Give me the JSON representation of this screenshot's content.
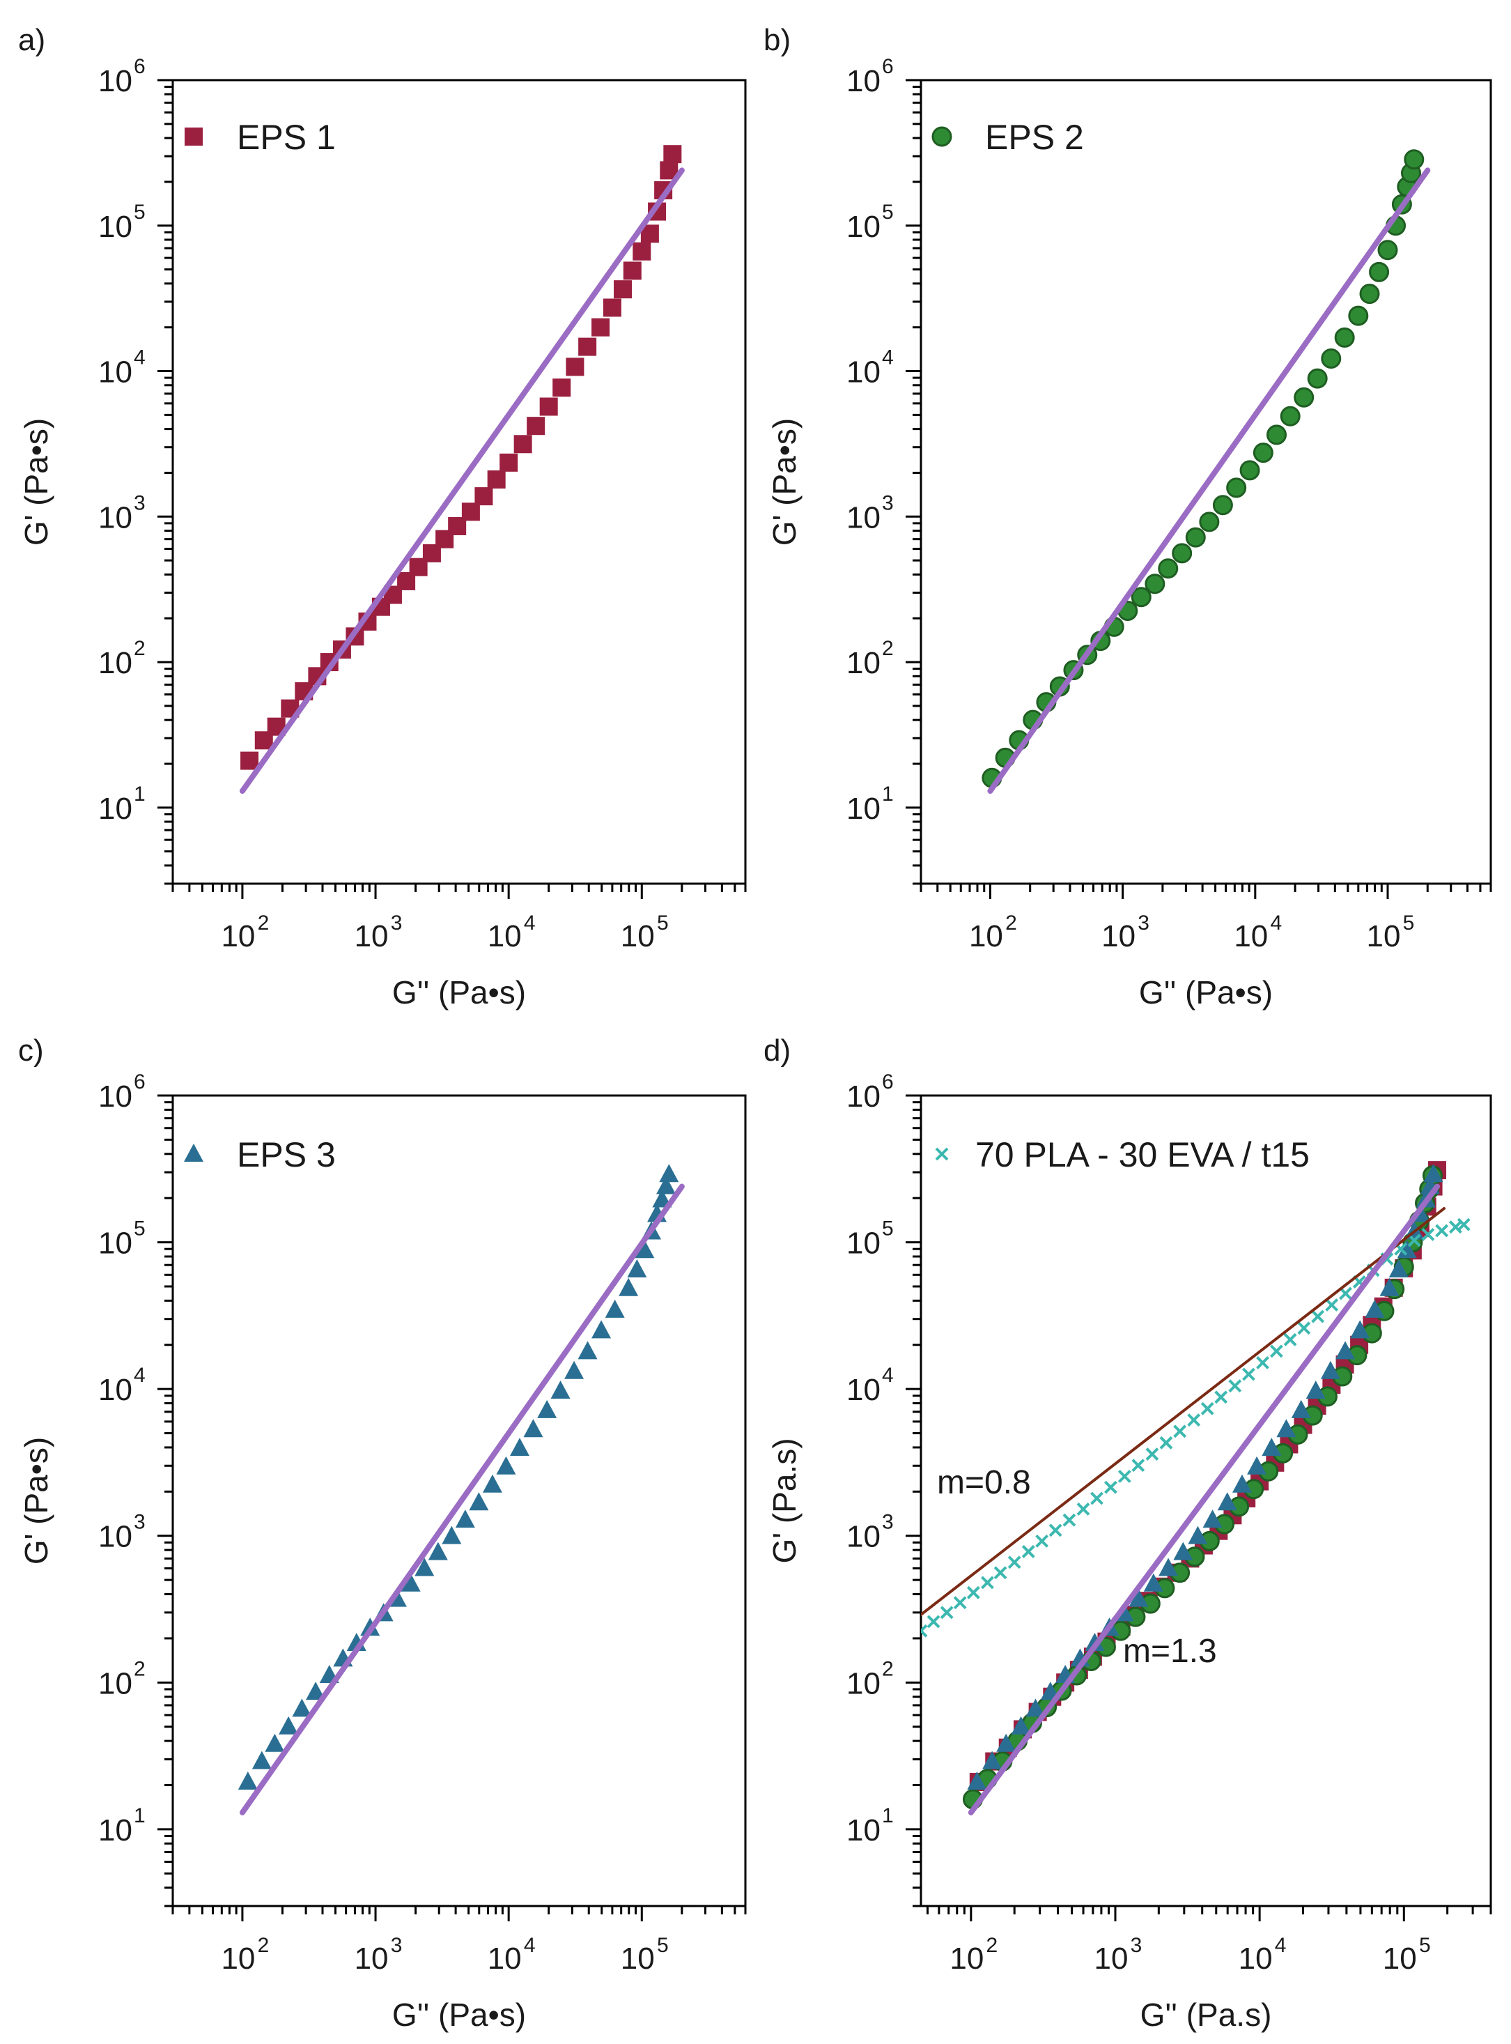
{
  "figure": {
    "panels": [
      "a)",
      "b)",
      "c)",
      "d)"
    ]
  },
  "chart_data": [
    {
      "panel": "a)",
      "type": "scatter",
      "xlabel": "G'' (Pa•s)",
      "ylabel": "G' (Pa•s)",
      "xscale": "log",
      "yscale": "log",
      "xlim": [
        30,
        600000
      ],
      "ylim": [
        3,
        1000000
      ],
      "xticks": [
        {
          "base": "10",
          "exp": "2"
        },
        {
          "base": "10",
          "exp": "3"
        },
        {
          "base": "10",
          "exp": "4"
        },
        {
          "base": "10",
          "exp": "5"
        }
      ],
      "yticks": [
        {
          "base": "10",
          "exp": "1"
        },
        {
          "base": "10",
          "exp": "2"
        },
        {
          "base": "10",
          "exp": "3"
        },
        {
          "base": "10",
          "exp": "4"
        },
        {
          "base": "10",
          "exp": "5"
        },
        {
          "base": "10",
          "exp": "6"
        }
      ],
      "legend": {
        "position": "top-left"
      },
      "annotations": [],
      "series": [
        {
          "name": "EPS 1",
          "marker": "square",
          "color": "#9b2040",
          "in_legend": true,
          "x": [
            113,
            145,
            180,
            228,
            290,
            365,
            450,
            560,
            700,
            870,
            1100,
            1350,
            1700,
            2100,
            2650,
            3300,
            4100,
            5200,
            6500,
            8100,
            10000,
            12800,
            16000,
            20000,
            25000,
            31500,
            39000,
            49000,
            60000,
            72000,
            85000,
            100000,
            115000,
            130000,
            145000,
            160000,
            170000
          ],
          "y": [
            21,
            29,
            36,
            48,
            63,
            80,
            100,
            122,
            150,
            190,
            240,
            290,
            360,
            450,
            560,
            700,
            860,
            1080,
            1380,
            1800,
            2350,
            3150,
            4200,
            5700,
            7700,
            10700,
            14700,
            20000,
            27300,
            36500,
            49000,
            66500,
            88000,
            125000,
            175000,
            240000,
            310000
          ]
        },
        {
          "name": "fit",
          "type": "line",
          "color": "#9b6cc4",
          "width": 8,
          "x": [
            100,
            200000
          ],
          "y": [
            13,
            240000
          ]
        }
      ]
    },
    {
      "panel": "b)",
      "type": "scatter",
      "xlabel": "G'' (Pa•s)",
      "ylabel": "G' (Pa•s)",
      "xscale": "log",
      "yscale": "log",
      "xlim": [
        30,
        600000
      ],
      "ylim": [
        3,
        1000000
      ],
      "xticks": [
        {
          "base": "10",
          "exp": "2"
        },
        {
          "base": "10",
          "exp": "3"
        },
        {
          "base": "10",
          "exp": "4"
        },
        {
          "base": "10",
          "exp": "5"
        }
      ],
      "yticks": [
        {
          "base": "10",
          "exp": "1"
        },
        {
          "base": "10",
          "exp": "2"
        },
        {
          "base": "10",
          "exp": "3"
        },
        {
          "base": "10",
          "exp": "4"
        },
        {
          "base": "10",
          "exp": "5"
        },
        {
          "base": "10",
          "exp": "6"
        }
      ],
      "legend": {
        "position": "top-left"
      },
      "annotations": [],
      "series": [
        {
          "name": "EPS 2",
          "marker": "circle",
          "color": "#2e8b34",
          "in_legend": true,
          "x": [
            103,
            130,
            165,
            210,
            265,
            335,
            425,
            540,
            680,
            860,
            1090,
            1380,
            1750,
            2200,
            2800,
            3550,
            4500,
            5700,
            7200,
            9100,
            11500,
            14500,
            18400,
            23300,
            29500,
            37400,
            47300,
            60000,
            73000,
            86000,
            100000,
            115000,
            128000,
            140000,
            150000,
            158000
          ],
          "y": [
            16,
            22,
            29,
            40,
            53,
            68,
            88,
            112,
            140,
            175,
            225,
            280,
            345,
            440,
            560,
            720,
            920,
            1200,
            1580,
            2080,
            2750,
            3650,
            4900,
            6600,
            8900,
            12200,
            17000,
            24000,
            34000,
            48000,
            68000,
            100000,
            140000,
            185000,
            230000,
            285000
          ]
        },
        {
          "name": "fit",
          "type": "line",
          "color": "#9b6cc4",
          "width": 8,
          "x": [
            100,
            200000
          ],
          "y": [
            13,
            240000
          ]
        }
      ]
    },
    {
      "panel": "c)",
      "type": "scatter",
      "xlabel": "G'' (Pa•s)",
      "ylabel": "G' (Pa•s)",
      "xscale": "log",
      "yscale": "log",
      "xlim": [
        30,
        600000
      ],
      "ylim": [
        3,
        1000000
      ],
      "xticks": [
        {
          "base": "10",
          "exp": "2"
        },
        {
          "base": "10",
          "exp": "3"
        },
        {
          "base": "10",
          "exp": "4"
        },
        {
          "base": "10",
          "exp": "5"
        }
      ],
      "yticks": [
        {
          "base": "10",
          "exp": "1"
        },
        {
          "base": "10",
          "exp": "2"
        },
        {
          "base": "10",
          "exp": "3"
        },
        {
          "base": "10",
          "exp": "4"
        },
        {
          "base": "10",
          "exp": "5"
        },
        {
          "base": "10",
          "exp": "6"
        }
      ],
      "legend": {
        "position": "top-left"
      },
      "annotations": [],
      "series": [
        {
          "name": "EPS 3",
          "marker": "triangle",
          "color": "#2a6f93",
          "in_legend": true,
          "x": [
            110,
            140,
            175,
            222,
            280,
            355,
            450,
            570,
            720,
            910,
            1150,
            1450,
            1840,
            2330,
            2950,
            3730,
            4720,
            5970,
            7560,
            9560,
            12100,
            15300,
            19400,
            24500,
            31000,
            39200,
            49600,
            62800,
            79400,
            92000,
            105000,
            118000,
            130000,
            142000,
            152000,
            160000
          ],
          "y": [
            21,
            29,
            38,
            50,
            66,
            86,
            112,
            145,
            185,
            235,
            295,
            370,
            470,
            600,
            770,
            990,
            1280,
            1680,
            2220,
            2950,
            3950,
            5300,
            7150,
            9700,
            13200,
            18000,
            25000,
            34500,
            48500,
            65000,
            88000,
            118000,
            155000,
            195000,
            240000,
            290000
          ]
        },
        {
          "name": "fit",
          "type": "line",
          "color": "#9b6cc4",
          "width": 8,
          "x": [
            100,
            200000
          ],
          "y": [
            13,
            240000
          ]
        }
      ]
    },
    {
      "panel": "d)",
      "type": "scatter",
      "xlabel": "G'' (Pa.s)",
      "ylabel": "G' (Pa.s)",
      "xscale": "log",
      "yscale": "log",
      "xlim": [
        45,
        400000
      ],
      "ylim": [
        3,
        1000000
      ],
      "xticks": [
        {
          "base": "10",
          "exp": "2"
        },
        {
          "base": "10",
          "exp": "3"
        },
        {
          "base": "10",
          "exp": "4"
        },
        {
          "base": "10",
          "exp": "5"
        }
      ],
      "yticks": [
        {
          "base": "10",
          "exp": "1"
        },
        {
          "base": "10",
          "exp": "2"
        },
        {
          "base": "10",
          "exp": "3"
        },
        {
          "base": "10",
          "exp": "4"
        },
        {
          "base": "10",
          "exp": "5"
        },
        {
          "base": "10",
          "exp": "6"
        }
      ],
      "legend": {
        "position": "top-left"
      },
      "annotations": [
        {
          "text": "m=0.8",
          "x": 130,
          "y": 3800
        },
        {
          "text": "m=1.3",
          "x": 1100,
          "y": 170
        }
      ],
      "series": [
        {
          "name": "EPS 1",
          "marker": "square",
          "color": "#9b2040",
          "in_legend": false,
          "x": [
            113,
            145,
            180,
            228,
            290,
            365,
            450,
            560,
            700,
            870,
            1100,
            1350,
            1700,
            2100,
            2650,
            3300,
            4100,
            5200,
            6500,
            8100,
            10000,
            12800,
            16000,
            20000,
            25000,
            31500,
            39000,
            49000,
            60000,
            72000,
            85000,
            100000,
            115000,
            130000,
            145000,
            160000,
            170000
          ],
          "y": [
            21,
            29,
            36,
            48,
            63,
            80,
            100,
            122,
            150,
            190,
            240,
            290,
            360,
            450,
            560,
            700,
            860,
            1080,
            1380,
            1800,
            2350,
            3150,
            4200,
            5700,
            7700,
            10700,
            14700,
            20000,
            27300,
            36500,
            49000,
            66500,
            88000,
            125000,
            175000,
            240000,
            310000
          ]
        },
        {
          "name": "EPS 2",
          "marker": "circle",
          "color": "#2e8b34",
          "in_legend": false,
          "x": [
            103,
            130,
            165,
            210,
            265,
            335,
            425,
            540,
            680,
            860,
            1090,
            1380,
            1750,
            2200,
            2800,
            3550,
            4500,
            5700,
            7200,
            9100,
            11500,
            14500,
            18400,
            23300,
            29500,
            37400,
            47300,
            60000,
            73000,
            86000,
            100000,
            115000,
            128000,
            140000,
            150000,
            158000
          ],
          "y": [
            16,
            22,
            29,
            40,
            53,
            68,
            88,
            112,
            140,
            175,
            225,
            280,
            345,
            440,
            560,
            720,
            920,
            1200,
            1580,
            2080,
            2750,
            3650,
            4900,
            6600,
            8900,
            12200,
            17000,
            24000,
            34000,
            48000,
            68000,
            100000,
            140000,
            185000,
            230000,
            285000
          ]
        },
        {
          "name": "EPS 3",
          "marker": "triangle",
          "color": "#2a6f93",
          "in_legend": false,
          "x": [
            110,
            140,
            175,
            222,
            280,
            355,
            450,
            570,
            720,
            910,
            1150,
            1450,
            1840,
            2330,
            2950,
            3730,
            4720,
            5970,
            7560,
            9560,
            12100,
            15300,
            19400,
            24500,
            31000,
            39200,
            49600,
            62800,
            79400,
            92000,
            105000,
            118000,
            130000,
            142000,
            152000,
            160000
          ],
          "y": [
            21,
            29,
            38,
            50,
            66,
            86,
            112,
            145,
            185,
            235,
            295,
            370,
            470,
            600,
            770,
            990,
            1280,
            1680,
            2220,
            2950,
            3950,
            5300,
            7150,
            9700,
            13200,
            18000,
            25000,
            34500,
            48500,
            65000,
            88000,
            118000,
            155000,
            195000,
            240000,
            290000
          ]
        },
        {
          "name": "70 PLA - 30 EVA / t15",
          "marker": "x",
          "color": "#3cb8b0",
          "in_legend": true,
          "x": [
            45,
            55,
            68,
            84,
            104,
            130,
            160,
            200,
            250,
            310,
            385,
            480,
            600,
            745,
            930,
            1160,
            1440,
            1800,
            2250,
            2800,
            3500,
            4350,
            5400,
            6750,
            8400,
            10500,
            13100,
            16300,
            20300,
            25300,
            31600,
            39400,
            49100,
            61200,
            76300,
            95000,
            118000,
            147000,
            183000,
            228000,
            260000
          ],
          "y": [
            225,
            260,
            300,
            350,
            410,
            480,
            560,
            660,
            780,
            920,
            1090,
            1280,
            1520,
            1800,
            2140,
            2540,
            3020,
            3600,
            4300,
            5150,
            6150,
            7350,
            8800,
            10500,
            12600,
            15100,
            18100,
            21700,
            26000,
            31200,
            37400,
            44800,
            53700,
            64400,
            77000,
            90000,
            103000,
            113000,
            120000,
            127000,
            132000
          ]
        },
        {
          "name": "fit m=0.8",
          "type": "line",
          "color": "#7b2a14",
          "width": 4,
          "x": [
            45,
            190000
          ],
          "y": [
            290,
            170000
          ]
        },
        {
          "name": "fit m=1.3",
          "type": "line",
          "color": "#9b6cc4",
          "width": 8,
          "x": [
            100,
            170000
          ],
          "y": [
            13,
            240000
          ]
        }
      ]
    }
  ]
}
